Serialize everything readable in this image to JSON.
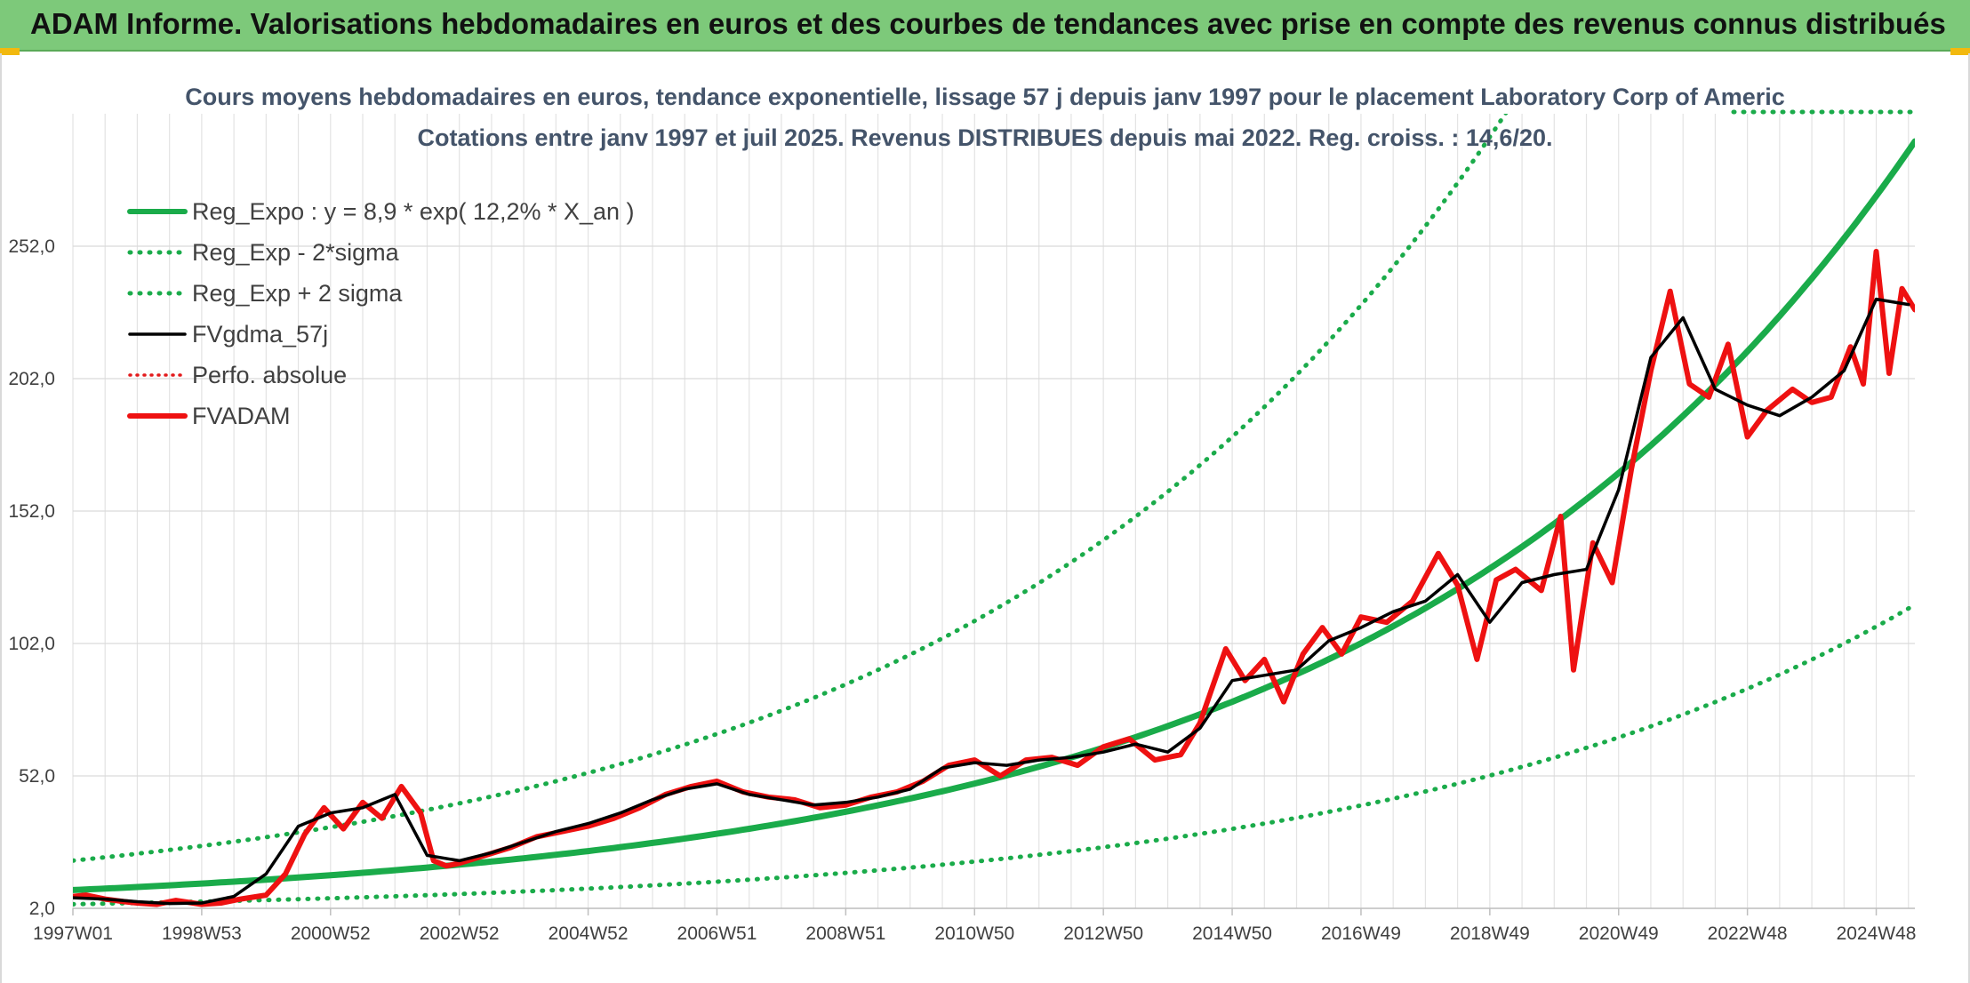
{
  "banner": {
    "title": "ADAM Informe. Valorisations hebdomadaires en euros et des courbes de tendances avec prise en compte des revenus connus distribués"
  },
  "colors": {
    "banner_bg": "#7dc97a",
    "reg_expo": "#1aab4a",
    "sigma_band": "#1aab4a",
    "fvgdma": "#000000",
    "perfo": "#e31a1c",
    "fvadam": "#ee1111",
    "title_text": "#44546a"
  },
  "chart_data": {
    "type": "line",
    "title": "Cours moyens hebdomadaires en euros, tendance exponentielle, lissage 57 j depuis janv 1997 pour le placement Laboratory Corp of Americ",
    "subtitle": "Cotations entre janv 1997 et juil 2025. Revenus DISTRIBUES depuis mai 2022. Reg. croiss. : 14,6/20.",
    "xlabel": "",
    "ylabel": "",
    "x_range": [
      1997.0,
      2025.6
    ],
    "ylim": [
      2.0,
      302.0
    ],
    "y_ticks": [
      2.0,
      52.0,
      102.0,
      152.0,
      202.0,
      252.0
    ],
    "y_tick_labels": [
      "2,0",
      "52,0",
      "102,0",
      "152,0",
      "202,0",
      "252,0"
    ],
    "x_tick_labels": [
      "1997W01",
      "1998W53",
      "2000W52",
      "2002W52",
      "2004W52",
      "2006W51",
      "2008W51",
      "2010W50",
      "2012W50",
      "2014W50",
      "2016W49",
      "2018W49",
      "2020W49",
      "2022W48",
      "2024W48"
    ],
    "x_tick_positions": [
      1997.0,
      1999.0,
      2001.0,
      2003.0,
      2005.0,
      2007.0,
      2009.0,
      2011.0,
      2013.0,
      2015.0,
      2017.0,
      2019.0,
      2021.0,
      2023.0,
      2025.0
    ],
    "grid": "vertical-and-horizontal",
    "legend_position": "top-left",
    "series": [
      {
        "name": "Reg_Expo : y = 8,9 * exp( 12,2% *  X_an )",
        "style": "solid-thick",
        "x": [
          1997.0,
          1999.0,
          2001.0,
          2003.0,
          2005.0,
          2007.0,
          2009.0,
          2011.0,
          2013.0,
          2015.0,
          2017.0,
          2019.0,
          2021.0,
          2023.0,
          2025.6
        ],
        "y": [
          8.9,
          11.4,
          14.5,
          18.5,
          23.7,
          30.3,
          38.7,
          49.4,
          63.1,
          80.6,
          103.0,
          131.5,
          168.0,
          214.6,
          294.0
        ]
      },
      {
        "name": "Reg_Exp - 2*sigma",
        "style": "dotted",
        "x": [
          1997.0,
          1999.0,
          2001.0,
          2003.0,
          2005.0,
          2007.0,
          2009.0,
          2011.0,
          2013.0,
          2015.0,
          2017.0,
          2019.0,
          2021.0,
          2023.0,
          2025.6
        ],
        "y": [
          3.6,
          4.6,
          5.9,
          7.5,
          9.6,
          12.3,
          15.7,
          20.1,
          25.6,
          32.8,
          41.8,
          53.5,
          68.3,
          87.2,
          128.0
        ]
      },
      {
        "name": "Reg_Exp + 2 sigma",
        "style": "dotted",
        "x": [
          1997.0,
          1999.0,
          2001.0,
          2003.0,
          2005.0,
          2007.0,
          2009.0,
          2011.0,
          2013.0,
          2015.0,
          2017.0,
          2019.0,
          2021.0,
          2023.0,
          2025.6
        ],
        "y": [
          20.0,
          25.5,
          32.6,
          41.7,
          53.2,
          68.0,
          86.8,
          110.9,
          141.6,
          180.8,
          231.0,
          295.0,
          302.0,
          302.0,
          302.0
        ]
      },
      {
        "name": "FVgdma_57j",
        "style": "solid",
        "x": [
          1997.0,
          1997.5,
          1998.0,
          1998.5,
          1999.0,
          1999.5,
          2000.0,
          2000.5,
          2001.0,
          2001.5,
          2002.0,
          2002.5,
          2003.0,
          2003.5,
          2004.0,
          2004.5,
          2005.0,
          2005.5,
          2006.0,
          2006.5,
          2007.0,
          2007.5,
          2008.0,
          2008.5,
          2009.0,
          2009.5,
          2010.0,
          2010.5,
          2011.0,
          2011.5,
          2012.0,
          2012.5,
          2013.0,
          2013.5,
          2014.0,
          2014.5,
          2015.0,
          2015.5,
          2016.0,
          2016.5,
          2017.0,
          2017.5,
          2018.0,
          2018.5,
          2019.0,
          2019.5,
          2020.0,
          2020.5,
          2021.0,
          2021.5,
          2022.0,
          2022.5,
          2023.0,
          2023.5,
          2024.0,
          2024.5,
          2025.0,
          2025.5
        ],
        "y": [
          6.0,
          5.5,
          4.5,
          3.8,
          4.0,
          6.5,
          15.0,
          33.0,
          38.0,
          40.0,
          45.0,
          22.0,
          20.0,
          23.0,
          27.0,
          31.0,
          34.0,
          38.0,
          43.0,
          47.0,
          49.0,
          45.0,
          43.0,
          41.0,
          42.0,
          44.0,
          47.0,
          55.0,
          57.0,
          56.0,
          58.0,
          59.0,
          61.0,
          64.0,
          61.0,
          70.0,
          88.0,
          90.0,
          92.0,
          103.0,
          108.0,
          114.0,
          118.0,
          128.0,
          110.0,
          125.0,
          128.0,
          130.0,
          160.0,
          210.0,
          225.0,
          198.0,
          192.0,
          188.0,
          195.0,
          205.0,
          232.0,
          230.0
        ]
      },
      {
        "name": "Perfo. absolue",
        "style": "dotted",
        "x": [],
        "y": []
      },
      {
        "name": "FVADAM",
        "style": "solid-thick",
        "x": [
          1997.0,
          1997.2,
          1997.5,
          1997.8,
          1998.0,
          1998.3,
          1998.6,
          1999.0,
          1999.3,
          1999.6,
          2000.0,
          2000.3,
          2000.6,
          2000.9,
          2001.2,
          2001.5,
          2001.8,
          2002.1,
          2002.4,
          2002.6,
          2002.8,
          2003.0,
          2003.4,
          2003.8,
          2004.2,
          2004.6,
          2005.0,
          2005.4,
          2005.8,
          2006.2,
          2006.6,
          2007.0,
          2007.4,
          2007.8,
          2008.2,
          2008.6,
          2009.0,
          2009.4,
          2009.8,
          2010.2,
          2010.6,
          2011.0,
          2011.4,
          2011.8,
          2012.2,
          2012.6,
          2013.0,
          2013.4,
          2013.8,
          2014.2,
          2014.5,
          2014.9,
          2015.2,
          2015.5,
          2015.8,
          2016.1,
          2016.4,
          2016.7,
          2017.0,
          2017.4,
          2017.8,
          2018.2,
          2018.5,
          2018.8,
          2019.1,
          2019.4,
          2019.8,
          2020.1,
          2020.3,
          2020.6,
          2020.9,
          2021.2,
          2021.5,
          2021.8,
          2022.1,
          2022.4,
          2022.7,
          2023.0,
          2023.3,
          2023.7,
          2024.0,
          2024.3,
          2024.6,
          2024.8,
          2025.0,
          2025.2,
          2025.4,
          2025.6
        ],
        "y": [
          6.5,
          7.0,
          5.5,
          4.5,
          4.0,
          3.5,
          5.0,
          3.5,
          4.0,
          5.5,
          7.0,
          15.0,
          30.0,
          40.0,
          32.0,
          42.0,
          36.0,
          48.0,
          38.0,
          20.0,
          18.0,
          19.0,
          22.0,
          25.0,
          29.0,
          31.0,
          33.0,
          36.0,
          40.0,
          45.0,
          48.0,
          50.0,
          46.0,
          44.0,
          43.0,
          40.0,
          41.0,
          44.0,
          46.0,
          50.0,
          56.0,
          58.0,
          52.0,
          58.0,
          59.0,
          56.0,
          63.0,
          66.0,
          58.0,
          60.0,
          72.0,
          100.0,
          88.0,
          96.0,
          80.0,
          98.0,
          108.0,
          98.0,
          112.0,
          110.0,
          118.0,
          136.0,
          124.0,
          96.0,
          126.0,
          130.0,
          122.0,
          150.0,
          92.0,
          140.0,
          125.0,
          168.0,
          205.0,
          235.0,
          200.0,
          195.0,
          215.0,
          180.0,
          190.0,
          198.0,
          193.0,
          195.0,
          214.0,
          200.0,
          250.0,
          204.0,
          236.0,
          228.0
        ]
      }
    ]
  }
}
